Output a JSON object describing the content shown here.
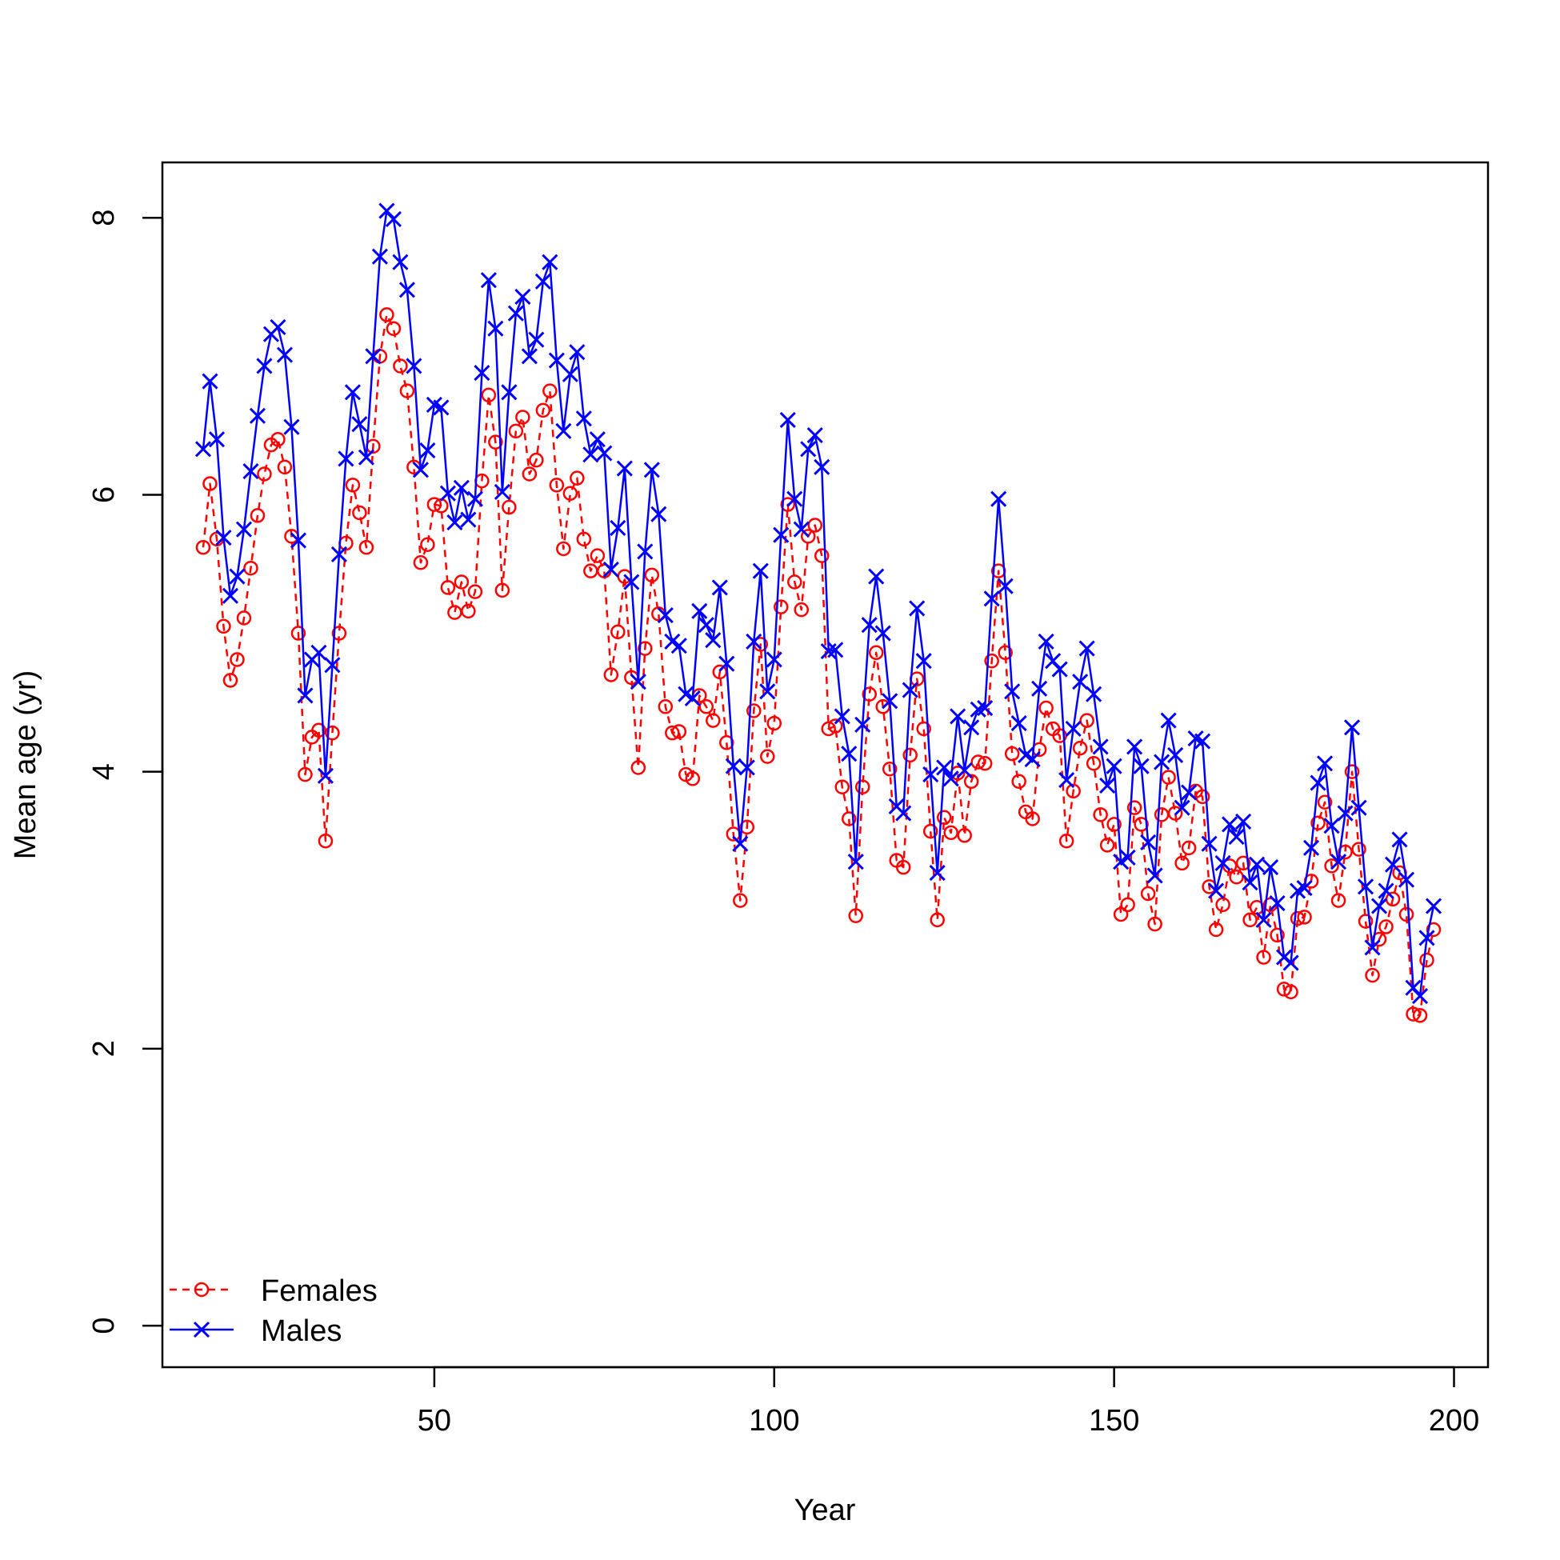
{
  "chart_data": {
    "type": "line",
    "title": "",
    "xlabel": "Year",
    "ylabel": "Mean age (yr)",
    "xlim": [
      10,
      205
    ],
    "ylim": [
      -0.3,
      8.4
    ],
    "x_ticks": [
      50,
      100,
      150,
      200
    ],
    "y_ticks": [
      0,
      2,
      4,
      6,
      8
    ],
    "grid": false,
    "legend_position": "bottom-left",
    "x": [
      16,
      17,
      18,
      19,
      20,
      21,
      22,
      23,
      24,
      25,
      26,
      27,
      28,
      29,
      30,
      31,
      32,
      33,
      34,
      35,
      36,
      37,
      38,
      39,
      40,
      41,
      42,
      43,
      44,
      45,
      46,
      47,
      48,
      49,
      50,
      51,
      52,
      53,
      54,
      55,
      56,
      57,
      58,
      59,
      60,
      61,
      62,
      63,
      64,
      65,
      66,
      67,
      68,
      69,
      70,
      71,
      72,
      73,
      74,
      75,
      76,
      77,
      78,
      79,
      80,
      81,
      82,
      83,
      84,
      85,
      86,
      87,
      88,
      89,
      90,
      91,
      92,
      93,
      94,
      95,
      96,
      97,
      98,
      99,
      100,
      101,
      102,
      103,
      104,
      105,
      106,
      107,
      108,
      109,
      110,
      111,
      112,
      113,
      114,
      115,
      116,
      117,
      118,
      119,
      120,
      121,
      122,
      123,
      124,
      125,
      126,
      127,
      128,
      129,
      130,
      131,
      132,
      133,
      134,
      135,
      136,
      137,
      138,
      139,
      140,
      141,
      142,
      143,
      144,
      145,
      146,
      147,
      148,
      149,
      150,
      151,
      152,
      153,
      154,
      155,
      156,
      157,
      158,
      159,
      160,
      161,
      162,
      163,
      164,
      165,
      166,
      167,
      168,
      169,
      170,
      171,
      172,
      173,
      174,
      175,
      176,
      177,
      178,
      179,
      180,
      181,
      182,
      183,
      184,
      185,
      186,
      187,
      188,
      189,
      190,
      191,
      192,
      193,
      194,
      195,
      196,
      197
    ],
    "series": [
      {
        "name": "Females",
        "color": "#ff0000",
        "line": "dashed",
        "marker": "circle",
        "values": [
          5.62,
          6.08,
          5.68,
          5.05,
          4.66,
          4.81,
          5.11,
          5.47,
          5.85,
          6.15,
          6.36,
          6.4,
          6.2,
          5.7,
          5.0,
          3.98,
          4.25,
          4.3,
          3.5,
          4.28,
          5.0,
          5.65,
          6.07,
          5.87,
          5.62,
          6.35,
          7.0,
          7.3,
          7.2,
          6.93,
          6.75,
          6.2,
          5.51,
          5.64,
          5.93,
          5.92,
          5.33,
          5.15,
          5.37,
          5.16,
          5.3,
          6.1,
          6.72,
          6.38,
          5.31,
          5.91,
          6.46,
          6.56,
          6.15,
          6.25,
          6.61,
          6.75,
          6.07,
          5.61,
          6.01,
          6.12,
          5.68,
          5.45,
          5.56,
          5.45,
          4.7,
          5.01,
          5.41,
          4.68,
          4.03,
          4.89,
          5.42,
          5.14,
          4.47,
          4.28,
          4.29,
          3.98,
          3.95,
          4.55,
          4.47,
          4.37,
          4.72,
          4.21,
          3.55,
          3.07,
          3.6,
          4.44,
          4.92,
          4.11,
          4.35,
          5.19,
          5.93,
          5.37,
          5.17,
          5.7,
          5.78,
          5.56,
          4.31,
          4.33,
          3.89,
          3.66,
          2.96,
          3.89,
          4.56,
          4.86,
          4.47,
          4.02,
          3.36,
          3.31,
          4.12,
          4.67,
          4.31,
          3.57,
          2.93,
          3.67,
          3.56,
          3.99,
          3.54,
          3.93,
          4.07,
          4.06,
          4.8,
          5.45,
          4.86,
          4.13,
          3.93,
          3.71,
          3.66,
          4.16,
          4.46,
          4.31,
          4.26,
          3.5,
          3.86,
          4.17,
          4.37,
          4.06,
          3.69,
          3.47,
          3.62,
          2.97,
          3.04,
          3.74,
          3.62,
          3.12,
          2.9,
          3.69,
          3.96,
          3.7,
          3.34,
          3.45,
          3.86,
          3.82,
          3.17,
          2.86,
          3.04,
          3.32,
          3.24,
          3.34,
          2.93,
          3.02,
          2.66,
          3.04,
          2.82,
          2.43,
          2.41,
          2.94,
          2.95,
          3.21,
          3.63,
          3.78,
          3.32,
          3.07,
          3.42,
          4.0,
          3.44,
          2.92,
          2.53,
          2.79,
          2.88,
          3.08,
          3.27,
          2.97,
          2.25,
          2.24,
          2.64,
          2.86
        ]
      },
      {
        "name": "Males",
        "color": "#0000ff",
        "line": "solid",
        "marker": "x",
        "values": [
          6.33,
          6.82,
          6.4,
          5.69,
          5.27,
          5.41,
          5.75,
          6.17,
          6.57,
          6.93,
          7.16,
          7.21,
          7.01,
          6.49,
          5.67,
          4.55,
          4.81,
          4.86,
          3.97,
          4.77,
          5.57,
          6.26,
          6.74,
          6.51,
          6.27,
          7.0,
          7.72,
          8.05,
          7.99,
          7.68,
          7.48,
          6.93,
          6.18,
          6.32,
          6.65,
          6.63,
          6.01,
          5.8,
          6.05,
          5.82,
          5.97,
          6.88,
          7.55,
          7.2,
          6.02,
          6.74,
          7.31,
          7.43,
          7.0,
          7.12,
          7.54,
          7.68,
          6.97,
          6.46,
          6.87,
          7.03,
          6.55,
          6.29,
          6.4,
          6.3,
          5.46,
          5.76,
          6.19,
          5.37,
          4.65,
          5.59,
          6.18,
          5.86,
          5.13,
          4.94,
          4.91,
          4.56,
          4.53,
          5.16,
          5.06,
          4.95,
          5.33,
          4.78,
          4.04,
          3.48,
          4.03,
          4.94,
          5.45,
          4.58,
          4.81,
          5.71,
          6.54,
          5.97,
          5.75,
          6.33,
          6.43,
          6.2,
          4.87,
          4.88,
          4.4,
          4.13,
          3.35,
          4.34,
          5.06,
          5.41,
          5.0,
          4.51,
          3.75,
          3.7,
          4.59,
          5.18,
          4.8,
          3.98,
          3.27,
          4.03,
          3.95,
          4.4,
          4.01,
          4.32,
          4.45,
          4.46,
          5.25,
          5.97,
          5.34,
          4.58,
          4.35,
          4.12,
          4.09,
          4.6,
          4.94,
          4.8,
          4.74,
          3.94,
          4.31,
          4.65,
          4.89,
          4.56,
          4.18,
          3.9,
          4.04,
          3.35,
          3.38,
          4.18,
          4.04,
          3.49,
          3.25,
          4.07,
          4.37,
          4.12,
          3.74,
          3.85,
          4.24,
          4.22,
          3.48,
          3.14,
          3.34,
          3.62,
          3.53,
          3.64,
          3.2,
          3.33,
          2.93,
          3.31,
          3.05,
          2.66,
          2.62,
          3.14,
          3.16,
          3.45,
          3.92,
          4.06,
          3.61,
          3.35,
          3.7,
          4.32,
          3.74,
          3.17,
          2.73,
          3.03,
          3.14,
          3.33,
          3.51,
          3.22,
          2.44,
          2.38,
          2.8,
          3.03
        ]
      }
    ]
  }
}
